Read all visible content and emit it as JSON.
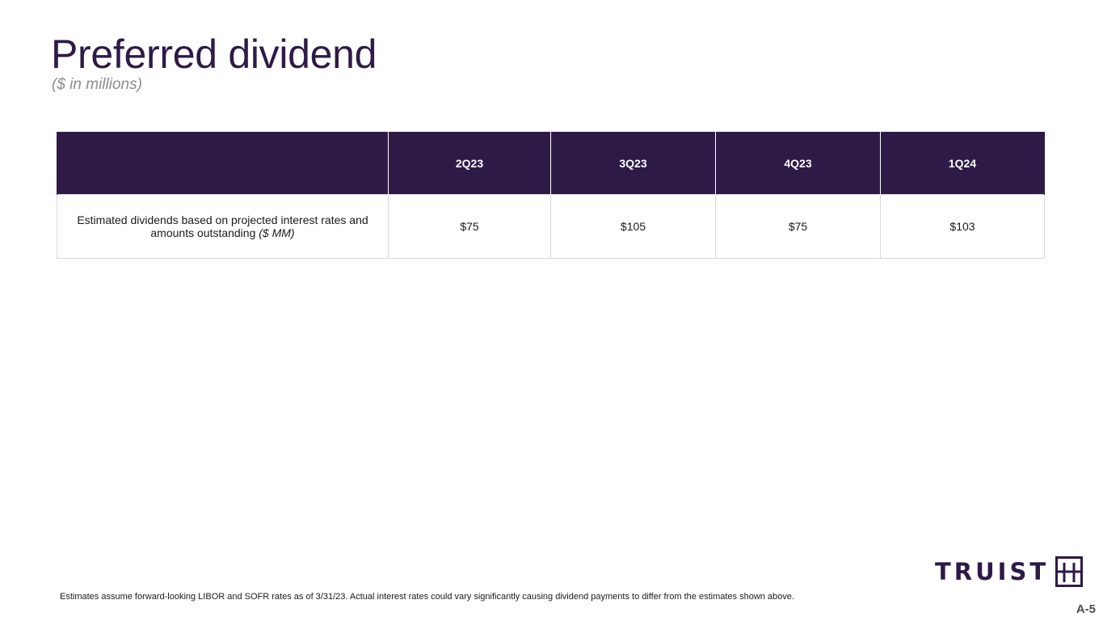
{
  "slide": {
    "title": "Preferred dividend",
    "subtitle": "($ in millions)"
  },
  "table": {
    "headers": [
      "",
      "2Q23",
      "3Q23",
      "4Q23",
      "1Q24"
    ],
    "rows": [
      {
        "label_main": "Estimated dividends based on projected interest rates and amounts outstanding ",
        "label_em": "($ MM)",
        "values": [
          "$75",
          "$105",
          "$75",
          "$103"
        ]
      }
    ]
  },
  "footnote": "Estimates assume forward-looking LIBOR and SOFR rates as of 3/31/23. Actual interest rates could vary significantly causing dividend payments to differ from the estimates shown above.",
  "logo": {
    "text": "TRUIST",
    "icon": "truist-mark-icon"
  },
  "page_number": "A-5",
  "colors": {
    "brand_purple": "#2e1a47",
    "subtitle_gray": "#8c8c8c"
  }
}
